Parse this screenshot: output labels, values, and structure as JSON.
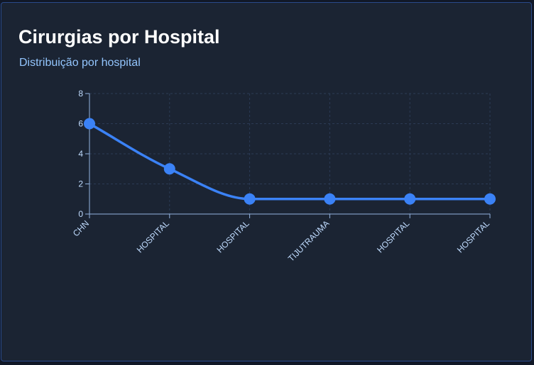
{
  "header": {
    "title": "Cirurgias por Hospital",
    "subtitle": "Distribuição por hospital"
  },
  "colors": {
    "background": "#1b2433",
    "series": "#3b82f6",
    "text": "#ffffff",
    "subtitle": "#93c5fd",
    "axis": "#93b4e0",
    "grid": "#2b3b55"
  },
  "chart_data": {
    "type": "line",
    "title": "",
    "xlabel": "",
    "ylabel": "",
    "categories": [
      "CHN",
      "HOSPITAL",
      "HOSPITAL",
      "TIJUTRAUMA",
      "HOSPITAL",
      "HOSPITAL"
    ],
    "series": [
      {
        "values": [
          6,
          3,
          1,
          1,
          1,
          1
        ]
      }
    ],
    "ylim": [
      0,
      8
    ],
    "yticks": [
      0,
      2,
      4,
      6,
      8
    ],
    "grid": true,
    "curve": "monotone"
  }
}
